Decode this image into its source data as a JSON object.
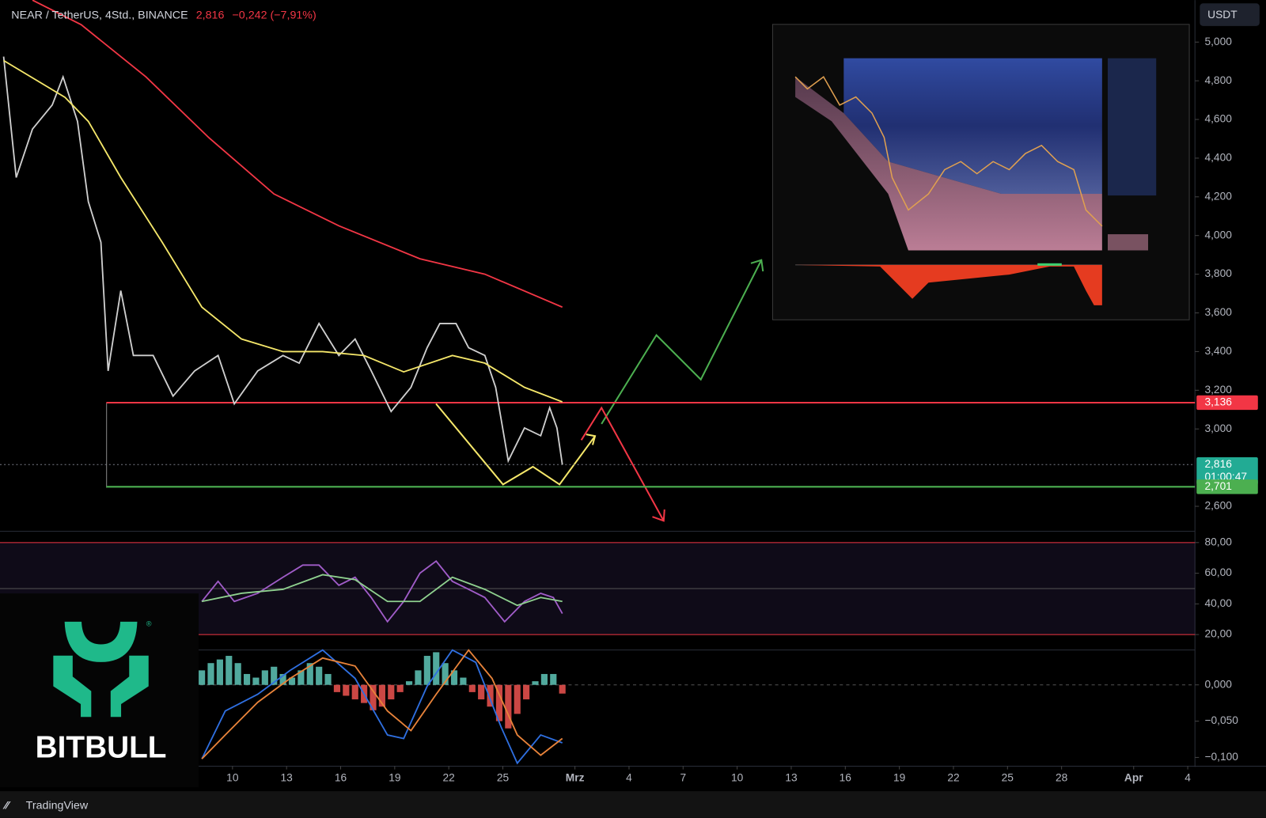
{
  "header": {
    "symbol": "NEAR / TetherUS, 4Std., BINANCE",
    "price": "2,816",
    "change": "−0,242 (−7,91%)",
    "currency": "USDT"
  },
  "branding": {
    "logo": "BITBULL",
    "footer": "TradingView"
  },
  "chart_data": [
    {
      "type": "line",
      "xlim": [
        -3.9,
        62.4
      ],
      "xticks": [
        {
          "value": 9,
          "label": "10"
        },
        {
          "value": 12,
          "label": "13"
        },
        {
          "value": 15,
          "label": "16"
        },
        {
          "value": 18,
          "label": "19"
        },
        {
          "value": 21,
          "label": "22"
        },
        {
          "value": 24,
          "label": "25"
        },
        {
          "value": 28,
          "label": "Mrz"
        },
        {
          "value": 31,
          "label": "4"
        },
        {
          "value": 34,
          "label": "7"
        },
        {
          "value": 37,
          "label": "10"
        },
        {
          "value": 40,
          "label": "13"
        },
        {
          "value": 43,
          "label": "16"
        },
        {
          "value": 46,
          "label": "19"
        },
        {
          "value": 49,
          "label": "22"
        },
        {
          "value": 52,
          "label": "25"
        },
        {
          "value": 55,
          "label": "28"
        },
        {
          "value": 59,
          "label": "Apr"
        },
        {
          "value": 62,
          "label": "4"
        }
      ],
      "ylim": [
        2475,
        5217
      ],
      "yticks": [
        {
          "value": 2600,
          "label": "2,600"
        },
        {
          "value": 3000,
          "label": "3,000"
        },
        {
          "value": 3200,
          "label": "3,200"
        },
        {
          "value": 3400,
          "label": "3,400"
        },
        {
          "value": 3600,
          "label": "3,600"
        },
        {
          "value": 3800,
          "label": "3,800"
        },
        {
          "value": 4000,
          "label": "4,000"
        },
        {
          "value": 4200,
          "label": "4,200"
        },
        {
          "value": 4400,
          "label": "4,400"
        },
        {
          "value": 4600,
          "label": "4,600"
        },
        {
          "value": 4800,
          "label": "4,800"
        },
        {
          "value": 5000,
          "label": "5,000"
        }
      ],
      "series": [
        {
          "color": "#cfcfcf",
          "x": [
            -3.7,
            -3.0,
            -2.1,
            -1.0,
            -0.4,
            0.4,
            1.0,
            1.7,
            2.1,
            2.8,
            3.5,
            4.6,
            5.7,
            6.9,
            8.2,
            9.1,
            10.4,
            11.8,
            12.7,
            13.8,
            14.9,
            15.8,
            16.7,
            17.8,
            18.9,
            19.8,
            20.5,
            21.4,
            22.1,
            23.0,
            23.6,
            24.3,
            25.2,
            26.1,
            26.6,
            27.0,
            27.3
          ],
          "values": [
            4925,
            4300,
            4550,
            4675,
            4820,
            4590,
            4175,
            3965,
            3300,
            3715,
            3380,
            3380,
            3170,
            3300,
            3380,
            3130,
            3300,
            3380,
            3340,
            3545,
            3380,
            3465,
            3300,
            3090,
            3215,
            3420,
            3545,
            3545,
            3420,
            3380,
            3215,
            2835,
            3005,
            2965,
            3110,
            3005,
            2816
          ]
        },
        {
          "color": "#f23645",
          "x": [
            -2.1,
            0.6,
            4.2,
            7.7,
            11.3,
            14.9,
            19.4,
            23.0,
            27.3
          ],
          "values": [
            5217,
            5090,
            4820,
            4505,
            4215,
            4050,
            3880,
            3800,
            3630
          ]
        },
        {
          "color": "#f5e76a",
          "x": [
            -3.7,
            -0.3,
            1.0,
            2.8,
            5.1,
            7.3,
            9.5,
            11.8,
            14.0,
            16.3,
            18.5,
            21.2,
            23.0,
            25.2,
            27.3
          ],
          "values": [
            4905,
            4715,
            4590,
            4300,
            3965,
            3630,
            3465,
            3400,
            3400,
            3380,
            3295,
            3380,
            3340,
            3215,
            3140
          ]
        }
      ],
      "levels": [
        {
          "value": 3136,
          "label": "3,136",
          "color": "#f23645",
          "from": 2.0
        },
        {
          "value": 2816,
          "label": "2,816",
          "color": "#22ab94",
          "countdown": "01:00:47"
        },
        {
          "value": 2701,
          "label": "2,701",
          "color": "#4caf50",
          "from": 2.0
        }
      ]
    },
    {
      "type": "line",
      "ylim": [
        11,
        86.3
      ],
      "yticks": [
        {
          "value": 20,
          "label": "20,00"
        },
        {
          "value": 40,
          "label": "40,00"
        },
        {
          "value": 60,
          "label": "60,00"
        },
        {
          "value": 80,
          "label": "80,00"
        }
      ],
      "band": {
        "lower": 20,
        "upper": 80,
        "middle": 50
      },
      "series": [
        {
          "color": "#a05cc8",
          "x": [
            7.3,
            8.2,
            9.1,
            10.4,
            11.8,
            12.9,
            13.8,
            14.9,
            15.8,
            16.7,
            17.6,
            18.5,
            19.4,
            20.3,
            21.2,
            22.1,
            23.0,
            24.1,
            25.2,
            26.1,
            26.8,
            27.3
          ],
          "values": [
            41.6,
            54.7,
            41.6,
            46.9,
            57.4,
            65.3,
            65.3,
            52.1,
            57.4,
            44.2,
            28.4,
            41.6,
            60,
            67.9,
            54.7,
            49.5,
            44.2,
            28.4,
            41.6,
            46.9,
            44.2,
            33.7
          ]
        },
        {
          "color": "#8fd18f",
          "x": [
            7.3,
            9.5,
            11.8,
            14.0,
            15.8,
            17.6,
            19.4,
            21.2,
            23.0,
            24.8,
            26.1,
            27.3
          ],
          "values": [
            41.6,
            46.9,
            49.5,
            59,
            55.8,
            41.6,
            41.6,
            57.4,
            49.5,
            39,
            44.2,
            41.6
          ]
        }
      ]
    },
    {
      "type": "bar",
      "ylim": [
        -0.111,
        0.047
      ],
      "yticks": [
        {
          "value": 0,
          "label": "0,000"
        },
        {
          "value": -0.05,
          "label": "−0,050"
        },
        {
          "value": -0.1,
          "label": "−0,100"
        }
      ],
      "series": [
        {
          "type": "bar",
          "color": "#5fc7b8",
          "negative_color": "#ef5350",
          "x": [
            7.3,
            7.8,
            8.3,
            8.8,
            9.3,
            9.8,
            10.3,
            10.8,
            11.3,
            11.8,
            12.3,
            12.8,
            13.3,
            13.8,
            14.3,
            14.8,
            15.3,
            15.8,
            16.3,
            16.8,
            17.3,
            17.8,
            18.3,
            18.8,
            19.3,
            19.8,
            20.3,
            20.8,
            21.3,
            21.8,
            22.3,
            22.8,
            23.3,
            23.8,
            24.3,
            24.8,
            25.3,
            25.8,
            26.3,
            26.8,
            27.3
          ],
          "values": [
            0.02,
            0.03,
            0.035,
            0.04,
            0.03,
            0.015,
            0.01,
            0.02,
            0.025,
            0.015,
            0.01,
            0.02,
            0.03,
            0.025,
            0.015,
            -0.01,
            -0.015,
            -0.02,
            -0.025,
            -0.035,
            -0.03,
            -0.02,
            -0.01,
            0.005,
            0.02,
            0.04,
            0.045,
            0.03,
            0.02,
            0.01,
            -0.01,
            -0.02,
            -0.03,
            -0.05,
            -0.06,
            -0.04,
            -0.02,
            0.005,
            0.015,
            0.015,
            -0.012
          ]
        },
        {
          "type": "line",
          "color": "#2f6fe0",
          "x": [
            7.3,
            8.6,
            10.4,
            12.2,
            14.0,
            15.8,
            17.6,
            18.5,
            19.8,
            21.2,
            22.5,
            23.9,
            24.8,
            26.1,
            27.3
          ],
          "values": [
            -0.102,
            -0.036,
            -0.013,
            0.02,
            0.048,
            0.009,
            -0.069,
            -0.074,
            -0.002,
            0.048,
            0.031,
            -0.058,
            -0.108,
            -0.069,
            -0.08
          ]
        },
        {
          "type": "line",
          "color": "#e8833a",
          "x": [
            7.3,
            8.6,
            10.4,
            12.2,
            14.0,
            15.8,
            17.6,
            18.9,
            20.3,
            22.1,
            23.4,
            24.8,
            26.1,
            27.3
          ],
          "values": [
            -0.102,
            -0.069,
            -0.024,
            0.009,
            0.037,
            0.026,
            -0.036,
            -0.063,
            -0.013,
            0.048,
            0.009,
            -0.069,
            -0.097,
            -0.074
          ]
        }
      ]
    }
  ]
}
